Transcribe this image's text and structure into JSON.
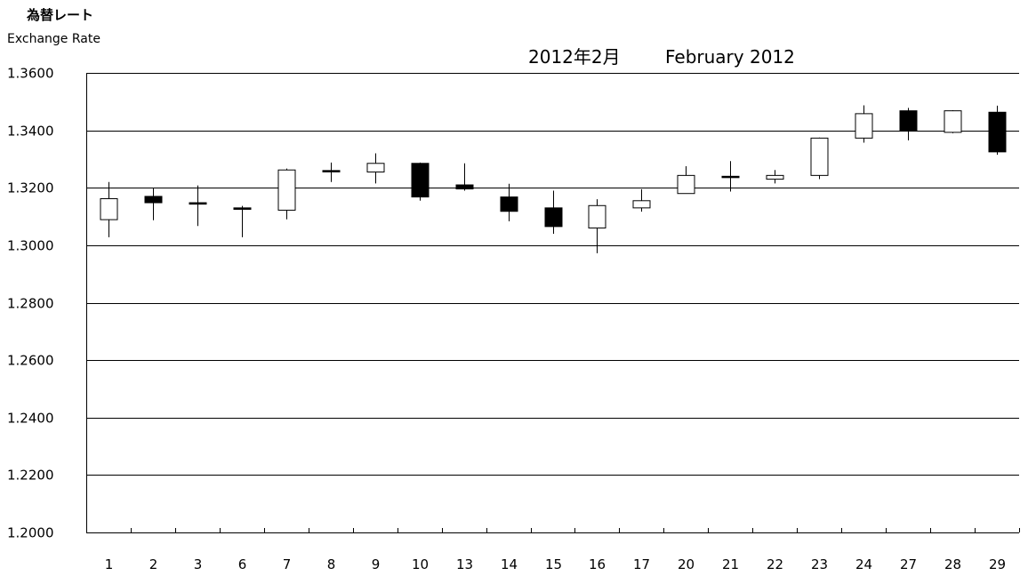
{
  "labels": {
    "ylabel_jp": "為替レート",
    "ylabel_en": "Exchange Rate",
    "title_jp": "2012年2月",
    "title_en": "February 2012"
  },
  "colors": {
    "up_fill": "#ffffff",
    "down_fill": "#000000",
    "line": "#000000",
    "grid": "#000000"
  },
  "chart_data": {
    "type": "candlestick",
    "title": "2012年2月　February 2012",
    "ylabel": "為替レート Exchange Rate",
    "xlabel": "",
    "ylim": [
      1.2,
      1.36
    ],
    "yticks": [
      "1.3600",
      "1.3400",
      "1.3200",
      "1.3000",
      "1.2800",
      "1.2600",
      "1.2400",
      "1.2200",
      "1.2000"
    ],
    "ytick_values": [
      1.36,
      1.34,
      1.32,
      1.3,
      1.28,
      1.26,
      1.24,
      1.22,
      1.2
    ],
    "grid": true,
    "categories": [
      "1",
      "2",
      "3",
      "6",
      "7",
      "8",
      "9",
      "10",
      "13",
      "14",
      "15",
      "16",
      "17",
      "20",
      "21",
      "22",
      "23",
      "24",
      "27",
      "28",
      "29"
    ],
    "open": [
      1.3089,
      1.317,
      1.3148,
      1.313,
      1.3122,
      1.326,
      1.3255,
      1.3285,
      1.321,
      1.3168,
      1.313,
      1.306,
      1.313,
      1.318,
      1.324,
      1.323,
      1.3243,
      1.3373,
      1.3468,
      1.3393,
      1.3463
    ],
    "high": [
      1.322,
      1.3198,
      1.3208,
      1.3137,
      1.3267,
      1.3288,
      1.332,
      1.3288,
      1.3285,
      1.3214,
      1.319,
      1.316,
      1.3195,
      1.3275,
      1.3293,
      1.3262,
      1.3375,
      1.3487,
      1.3478,
      1.347,
      1.3486
    ],
    "low": [
      1.3028,
      1.3087,
      1.3067,
      1.3028,
      1.309,
      1.322,
      1.3215,
      1.3155,
      1.319,
      1.3083,
      1.304,
      1.2972,
      1.3117,
      1.318,
      1.3187,
      1.3215,
      1.323,
      1.3357,
      1.3365,
      1.339,
      1.3315
    ],
    "close": [
      1.3162,
      1.3148,
      1.3143,
      1.3125,
      1.3262,
      1.3258,
      1.3285,
      1.3168,
      1.3196,
      1.3118,
      1.3065,
      1.3138,
      1.3155,
      1.3243,
      1.3236,
      1.3243,
      1.3373,
      1.3458,
      1.3398,
      1.3468,
      1.3325
    ]
  }
}
